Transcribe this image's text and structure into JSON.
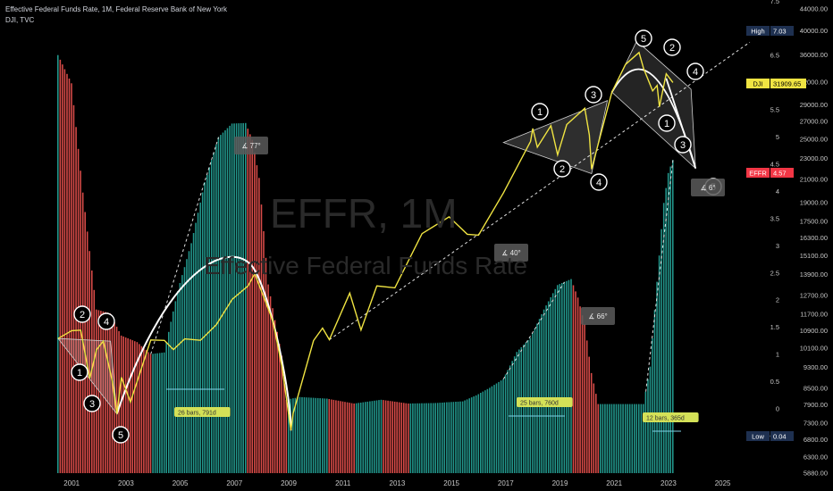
{
  "header": {
    "title": "Effective Federal Funds Rate, 1M, Federal Reserve Bank of New York",
    "subtitle": "DJI, TVC"
  },
  "watermark": {
    "ticker": "EFFR, 1M",
    "name": "Effective Federal Funds Rate"
  },
  "colors": {
    "background": "#000000",
    "up_bar": "#26a69a",
    "down_bar": "#ef5350",
    "dji_line": "#f0e442",
    "effr_badge": "#f23645",
    "dji_badge": "#f0e442",
    "high_low_badge": "#1e3050",
    "ruler_badge": "#d4e157"
  },
  "chart_data": {
    "type": "bar",
    "title": "Effective Federal Funds Rate, 1M, Federal Reserve Bank of New York",
    "x_ticks": [
      "2001",
      "2003",
      "2005",
      "2007",
      "2009",
      "2011",
      "2013",
      "2015",
      "2017",
      "2019",
      "2021",
      "2023",
      "2025"
    ],
    "y_axis_right": {
      "effr_ticks": [
        "7.5",
        "7",
        "6.5",
        "6",
        "5.5",
        "5",
        "4.5",
        "4",
        "3.5",
        "3",
        "2.5",
        "2",
        "1.5",
        "1",
        "0.5",
        "0",
        "-0.5"
      ],
      "dji_ticks": [
        "44000.00",
        "40000.00",
        "36000.00",
        "32000.00",
        "29000.00",
        "27000.00",
        "25000.00",
        "23000.00",
        "21000.00",
        "19000.00",
        "17500.00",
        "16300.00",
        "15100.00",
        "13900.00",
        "12700.00",
        "11700.00",
        "10900.00",
        "10100.00",
        "9300.00",
        "8500.00",
        "7900.00",
        "7300.00",
        "6800.00",
        "6300.00",
        "5880.00"
      ]
    },
    "series": [
      {
        "name": "EFFR",
        "kind": "bars",
        "points": [
          [
            "2000-07",
            6.5
          ],
          [
            "2001-01",
            5.98
          ],
          [
            "2001-06",
            3.97
          ],
          [
            "2001-12",
            1.82
          ],
          [
            "2002-06",
            1.75
          ],
          [
            "2002-11",
            1.34
          ],
          [
            "2003-06",
            1.22
          ],
          [
            "2003-12",
            1.0
          ],
          [
            "2004-06",
            1.03
          ],
          [
            "2004-12",
            2.16
          ],
          [
            "2005-06",
            3.04
          ],
          [
            "2005-12",
            4.16
          ],
          [
            "2006-06",
            4.99
          ],
          [
            "2006-12",
            5.24
          ],
          [
            "2007-06",
            5.25
          ],
          [
            "2007-09",
            4.94
          ],
          [
            "2007-12",
            4.24
          ],
          [
            "2008-04",
            2.28
          ],
          [
            "2008-10",
            0.97
          ],
          [
            "2008-12",
            0.16
          ],
          [
            "2009-06",
            0.21
          ],
          [
            "2010-06",
            0.18
          ],
          [
            "2011-06",
            0.09
          ],
          [
            "2012-06",
            0.16
          ],
          [
            "2013-06",
            0.09
          ],
          [
            "2014-06",
            0.1
          ],
          [
            "2015-06",
            0.13
          ],
          [
            "2015-12",
            0.24
          ],
          [
            "2016-06",
            0.38
          ],
          [
            "2016-12",
            0.54
          ],
          [
            "2017-06",
            1.04
          ],
          [
            "2017-12",
            1.3
          ],
          [
            "2018-06",
            1.82
          ],
          [
            "2018-12",
            2.27
          ],
          [
            "2019-06",
            2.38
          ],
          [
            "2019-09",
            2.04
          ],
          [
            "2019-12",
            1.55
          ],
          [
            "2020-03",
            0.65
          ],
          [
            "2020-06",
            0.08
          ],
          [
            "2021-06",
            0.08
          ],
          [
            "2022-02",
            0.08
          ],
          [
            "2022-05",
            0.77
          ],
          [
            "2022-08",
            2.33
          ],
          [
            "2022-11",
            3.78
          ],
          [
            "2023-01",
            4.33
          ],
          [
            "2023-03",
            4.57
          ]
        ]
      },
      {
        "name": "DJI",
        "kind": "line",
        "points": [
          [
            "2000-07",
            10522
          ],
          [
            "2001-01",
            10887
          ],
          [
            "2001-05",
            10911
          ],
          [
            "2001-09",
            8848
          ],
          [
            "2001-12",
            10022
          ],
          [
            "2002-03",
            10404
          ],
          [
            "2002-07",
            8737
          ],
          [
            "2002-09",
            7592
          ],
          [
            "2002-11",
            8896
          ],
          [
            "2003-03",
            7992
          ],
          [
            "2003-12",
            10454
          ],
          [
            "2004-06",
            10435
          ],
          [
            "2004-10",
            10027
          ],
          [
            "2005-03",
            10504
          ],
          [
            "2005-10",
            10440
          ],
          [
            "2006-05",
            11168
          ],
          [
            "2006-12",
            12463
          ],
          [
            "2007-07",
            13212
          ],
          [
            "2007-10",
            13930
          ],
          [
            "2008-03",
            12262
          ],
          [
            "2008-06",
            11350
          ],
          [
            "2008-10",
            9325
          ],
          [
            "2009-02",
            7063
          ],
          [
            "2009-03",
            7609
          ],
          [
            "2009-12",
            10428
          ],
          [
            "2010-04",
            11009
          ],
          [
            "2010-07",
            10466
          ],
          [
            "2011-04",
            12811
          ],
          [
            "2011-09",
            10913
          ],
          [
            "2012-04",
            13214
          ],
          [
            "2012-12",
            13104
          ],
          [
            "2013-12",
            16577
          ],
          [
            "2014-12",
            17823
          ],
          [
            "2015-08",
            16528
          ],
          [
            "2016-01",
            16466
          ],
          [
            "2016-12",
            19763
          ],
          [
            "2017-12",
            24719
          ],
          [
            "2018-01",
            26149
          ],
          [
            "2018-03",
            24103
          ],
          [
            "2018-09",
            26458
          ],
          [
            "2018-12",
            23327
          ],
          [
            "2019-04",
            26593
          ],
          [
            "2019-12",
            28538
          ],
          [
            "2020-02",
            25409
          ],
          [
            "2020-03",
            21917
          ],
          [
            "2020-12",
            30606
          ],
          [
            "2021-06",
            34503
          ],
          [
            "2021-12",
            36338
          ],
          [
            "2022-02",
            33893
          ],
          [
            "2022-06",
            30775
          ],
          [
            "2022-08",
            31510
          ],
          [
            "2022-09",
            28726
          ],
          [
            "2022-12",
            33147
          ],
          [
            "2023-03",
            31909
          ]
        ]
      }
    ],
    "price_labels": [
      {
        "label": "High",
        "value": "7.03"
      },
      {
        "label": "DJI",
        "value": "31909.65"
      },
      {
        "label": "EFFR",
        "value": "4.57"
      },
      {
        "label": "Low",
        "value": "0.04"
      }
    ],
    "annotations": {
      "angles": [
        "77°",
        "40°",
        "66°",
        "6°"
      ],
      "ranges": [
        "26 bars, 791d",
        "25 bars, 760d",
        "12 bars, 365d"
      ],
      "wave_counts_left": [
        "1",
        "2",
        "3",
        "4",
        "5"
      ],
      "wave_counts_mid": [
        "1",
        "2",
        "3",
        "4"
      ],
      "wave_counts_right": [
        "5",
        "2",
        "4",
        "1",
        "3",
        "5"
      ]
    },
    "grid": false,
    "legend": "none"
  }
}
